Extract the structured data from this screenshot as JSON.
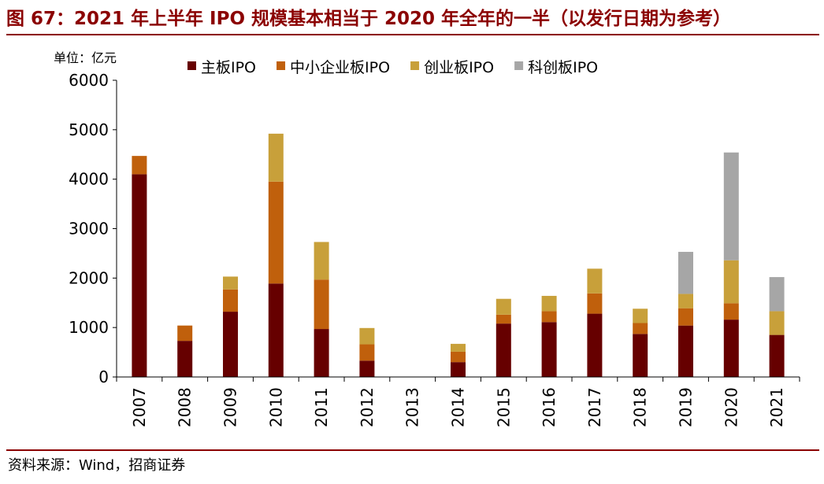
{
  "title": "图 67：2021 年上半年 IPO 规模基本相当于 2020 年全年的一半（以发行日期为参考）",
  "source": "资料来源：Wind，招商证券",
  "chart_data": {
    "type": "bar",
    "stacked": true,
    "unit_label": "单位：亿元",
    "categories": [
      "2007",
      "2008",
      "2009",
      "2010",
      "2011",
      "2012",
      "2013",
      "2014",
      "2015",
      "2016",
      "2017",
      "2018",
      "2019",
      "2020",
      "2021"
    ],
    "series": [
      {
        "name": "主板IPO",
        "color": "#660000",
        "values": [
          4100,
          730,
          1320,
          1890,
          970,
          330,
          0,
          300,
          1080,
          1110,
          1280,
          870,
          1040,
          1160,
          850
        ]
      },
      {
        "name": "中小企业板IPO",
        "color": "#C0600C",
        "values": [
          370,
          310,
          450,
          2060,
          1000,
          330,
          0,
          210,
          180,
          220,
          410,
          220,
          350,
          330,
          0
        ]
      },
      {
        "name": "创业板IPO",
        "color": "#C8A03A",
        "values": [
          0,
          0,
          260,
          970,
          760,
          330,
          0,
          160,
          320,
          310,
          500,
          290,
          290,
          870,
          480
        ]
      },
      {
        "name": "科创板IPO",
        "color": "#A6A6A6",
        "values": [
          0,
          0,
          0,
          0,
          0,
          0,
          0,
          0,
          0,
          0,
          0,
          0,
          850,
          2180,
          690
        ]
      }
    ],
    "ylim": [
      0,
      6000
    ],
    "yticks": [
      "0",
      "1000",
      "2000",
      "3000",
      "4000",
      "5000",
      "6000"
    ],
    "legend_position": "top",
    "grid": false
  }
}
